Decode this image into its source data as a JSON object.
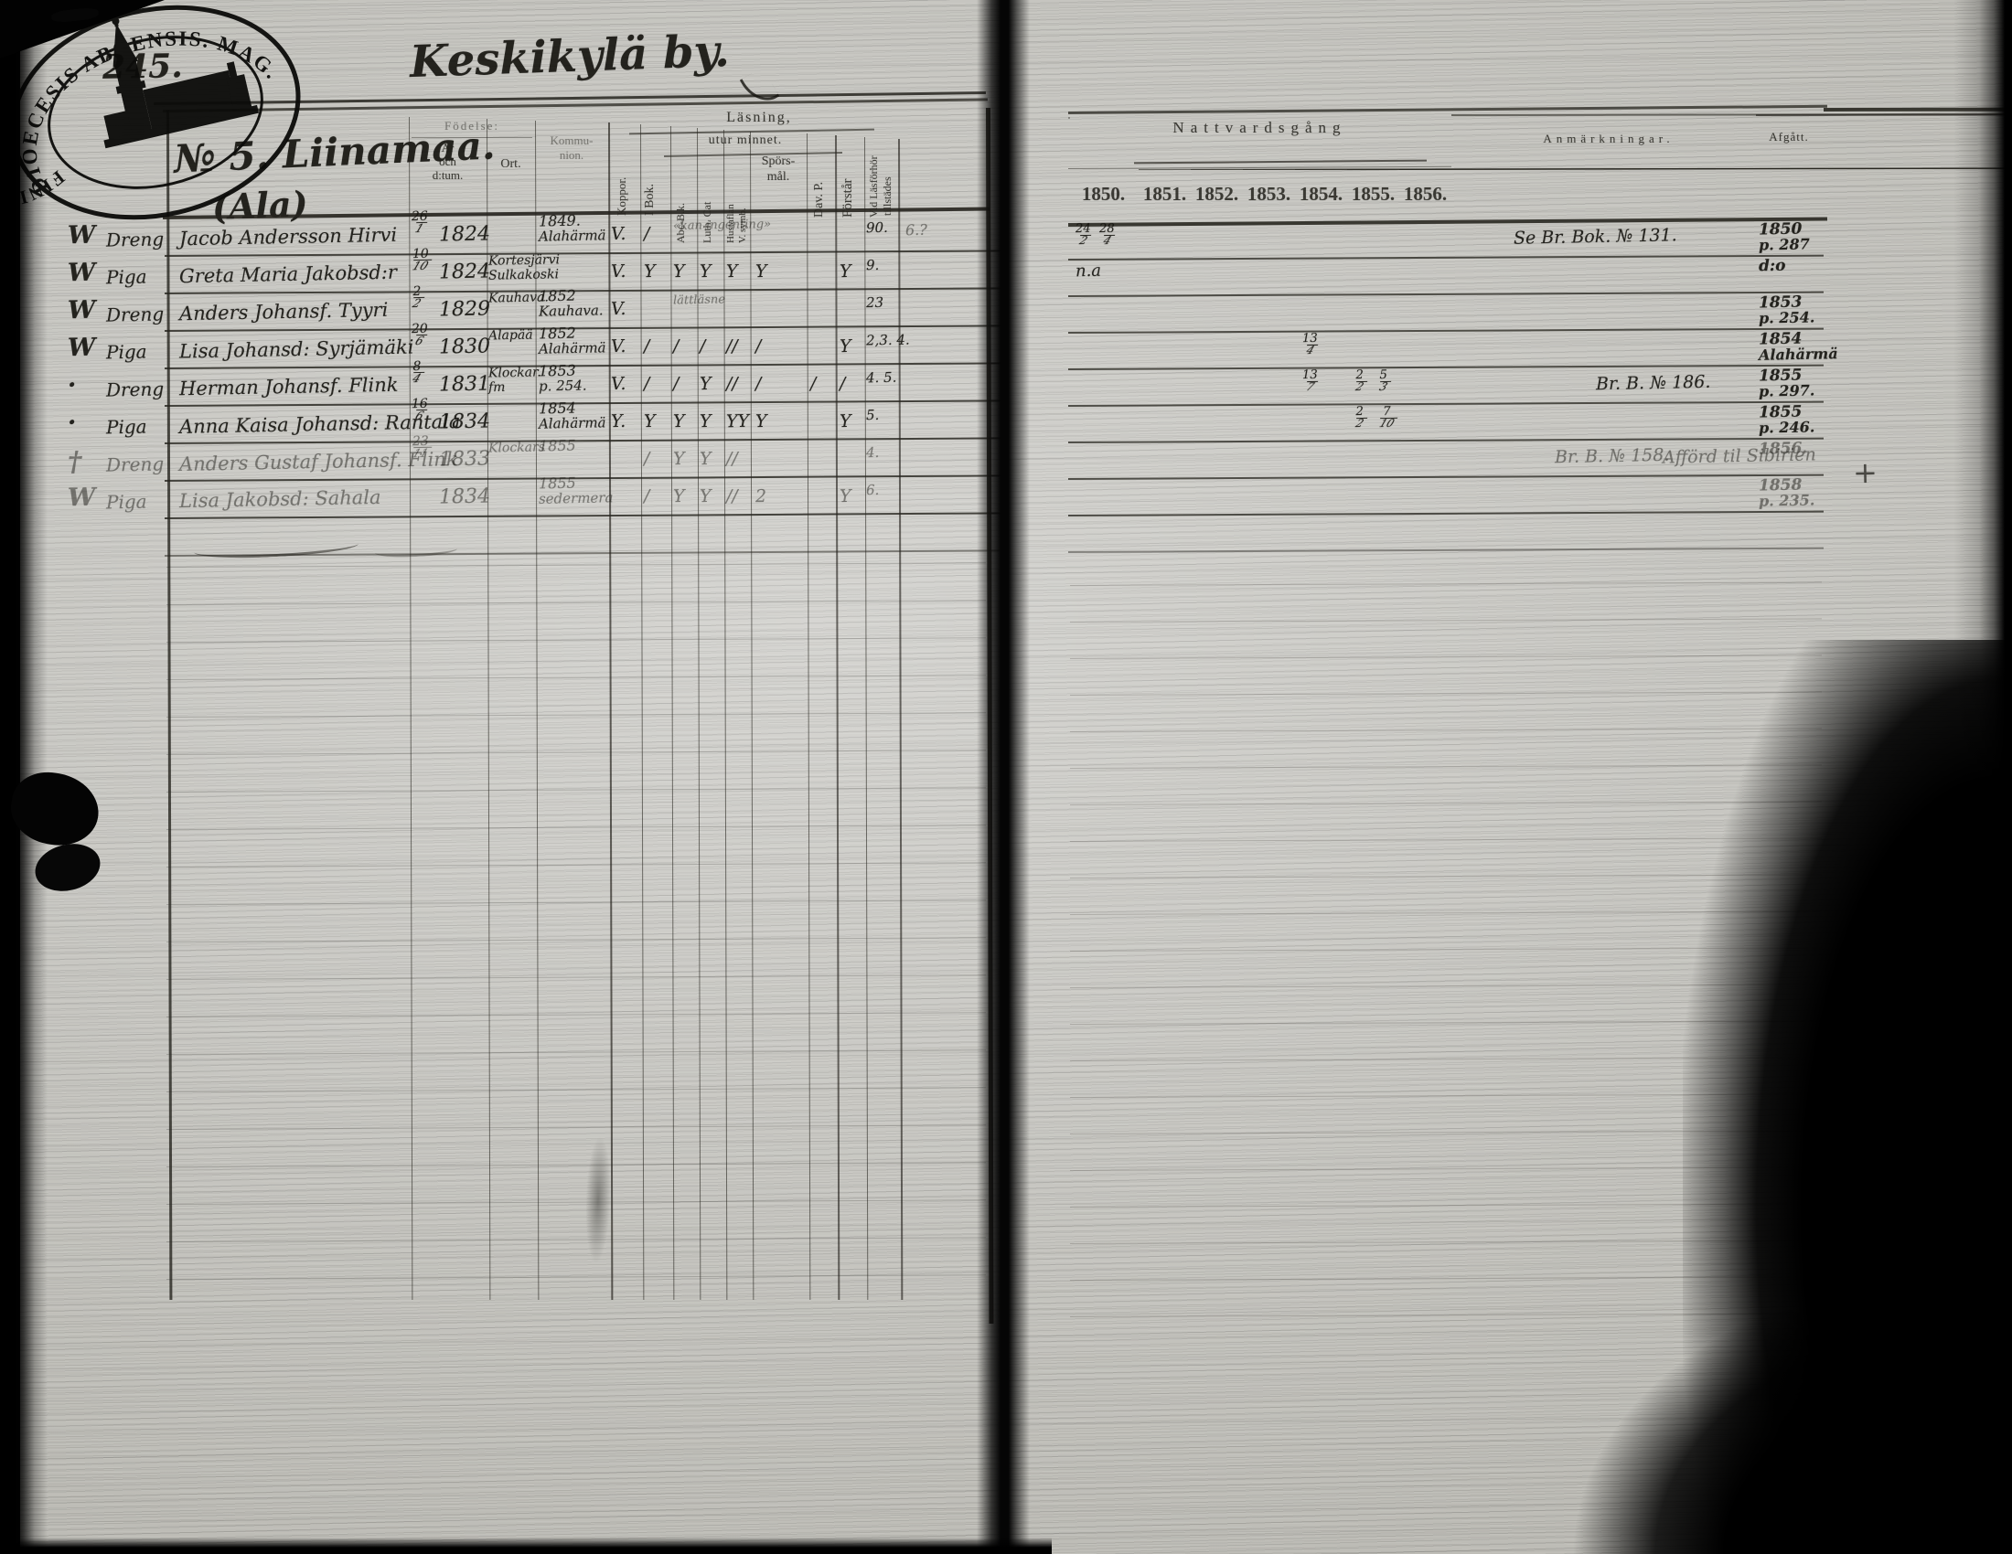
{
  "page": {
    "page_number": "245.",
    "village_title": "Keskikylä by.",
    "household_no": "№ 5. Liinamaa.",
    "household_sub": "(Ala)"
  },
  "headers_left": {
    "fodelse": "Födelse:",
    "ar1": "År",
    "ar2": "och",
    "ar3": "d:tum.",
    "ort": "Ort.",
    "komm1": "Kommu-",
    "komm2": "nion.",
    "koppor": "Koppor.",
    "ibok": "I Bok.",
    "lasning1": "Läsning,",
    "lasning2": "utur minnet.",
    "abc": "Abc-B.k.",
    "luth": "Luth. Cat",
    "hust1": "Hustaflan",
    "hust2": "V. symb.",
    "spors1": "Spörs-",
    "spors2": "mål.",
    "dav": "Dav. P.",
    "forstar": "Förstår",
    "tillst1": "Vid Läsförhör",
    "tillst2": "tillstädes"
  },
  "right": {
    "nattvard_header": "Nattvardsgång",
    "years": [
      "1850.",
      "1851.",
      "1852.",
      "1853.",
      "1854.",
      "1855.",
      "1856."
    ],
    "anmarkningar_header": "Anmärkningar.",
    "afgatt_header": "Afgått."
  },
  "rows": [
    {
      "mark": "W",
      "title": "Dreng",
      "name": "Jacob Andersson Hirvi",
      "bdate": "26/1",
      "byear": "1824",
      "ort": "",
      "komm": "1849. Alahärmä",
      "marks": [
        "V.",
        "/",
        "",
        "",
        "",
        "",
        "",
        ""
      ],
      "note": "«kan ingenting»",
      "till": "90.",
      "extra": "6.?",
      "natt": {
        "1850": "24/2 28/4"
      },
      "anm": "Se Br. Bok. № 131.",
      "anm2": "",
      "afgatt": [
        "1850",
        "p. 287"
      ],
      "faint": false
    },
    {
      "mark": "W",
      "title": "Piga",
      "name": "Greta Maria Jakobsd:r",
      "bdate": "10/10",
      "byear": "1824",
      "ort": "Kortesjärvi Sulkakoski",
      "komm": "",
      "marks": [
        "V.",
        "Y",
        "Y",
        "Y",
        "Y",
        "Y",
        "",
        "Y"
      ],
      "note": "",
      "till": "9.",
      "extra": "",
      "natt": {
        "1850": "n.a"
      },
      "anm": "",
      "anm2": "",
      "afgatt": [
        "d:o",
        ""
      ],
      "faint": false
    },
    {
      "mark": "W",
      "title": "Dreng",
      "name": "Anders Johansf. Tyyri",
      "bdate": "2/2",
      "byear": "1829",
      "ort": "Kauhava.",
      "komm": "1852 Kauhava.",
      "marks": [
        "V.",
        "",
        "",
        "",
        "",
        "",
        "",
        ""
      ],
      "note": "lättläsne",
      "till": "23",
      "extra": "",
      "natt": {},
      "anm": "",
      "anm2": "",
      "afgatt": [
        "1853",
        "p. 254."
      ],
      "faint": false
    },
    {
      "mark": "W",
      "title": "Piga",
      "name": "Lisa Johansd: Syrjämäki",
      "bdate": "20/6",
      "byear": "1830",
      "ort": "Alapää",
      "komm": "1852 Alahärmä",
      "marks": [
        "V.",
        "/",
        "/",
        "/",
        "//",
        "/",
        "",
        "Y"
      ],
      "note": "",
      "till": "2,3. 4.",
      "extra": "",
      "natt": {
        "1854": "13/4"
      },
      "anm": "",
      "anm2": "",
      "afgatt": [
        "1854",
        "Alahärmä"
      ],
      "faint": false
    },
    {
      "mark": "·",
      "title": "Dreng",
      "name": "Herman Johansf. Flink",
      "bdate": "8/4",
      "byear": "1831",
      "ort": "Klockar. fm",
      "komm": "1853 p. 254.",
      "marks": [
        "V.",
        "/",
        "/",
        "Y",
        "//",
        "/",
        "/",
        "/"
      ],
      "note": "",
      "till": "4. 5.",
      "extra": "",
      "natt": {
        "1854": "13/7",
        "1855": "2/2 5/3"
      },
      "anm": "Br. B. № 186.",
      "anm2": "",
      "afgatt": [
        "1855",
        "p. 297."
      ],
      "faint": false
    },
    {
      "mark": "·",
      "title": "Piga",
      "name": "Anna Kaisa Johansd: Rantala",
      "bdate": "16/6",
      "byear": "1834",
      "ort": "",
      "komm": "1854 Alahärmä",
      "marks": [
        "Y.",
        "Y",
        "Y",
        "Y",
        "YY",
        "Y",
        "",
        "Y"
      ],
      "note": "",
      "till": "5.",
      "extra": "",
      "natt": {
        "1855": "2/2 7/10"
      },
      "anm": "",
      "anm2": "",
      "afgatt": [
        "1855",
        "p. 246."
      ],
      "faint": false
    },
    {
      "mark": "†",
      "title": "Dreng",
      "name": "Anders Gustaf Johansf. Flink",
      "bdate": "23/11",
      "byear": "1833",
      "ort": "Klockars",
      "komm": "1855",
      "marks": [
        "",
        "/",
        "Y",
        "Y",
        "//",
        "",
        "",
        ""
      ],
      "note": "",
      "till": "4.",
      "extra": "",
      "natt": {},
      "anm": "Br. B. № 158.",
      "anm2": "Afförd til Sibirien",
      "afgatt": [
        "1856.",
        ""
      ],
      "faint": true
    },
    {
      "mark": "W",
      "title": "Piga",
      "name": "Lisa Jakobsd: Sahala",
      "bdate": "",
      "byear": "1834",
      "ort": "",
      "komm": "1855 sedermera",
      "marks": [
        "",
        "/",
        "Y",
        "Y",
        "//",
        "2",
        "",
        "Y"
      ],
      "note": "",
      "till": "6.",
      "extra": "",
      "natt": {},
      "anm": "",
      "anm2": "",
      "afgatt": [
        "1858",
        "p. 235."
      ],
      "faint": true
    }
  ],
  "stray_marks": {
    "plus_right_upper": "+",
    "plus_right_lower": "+"
  },
  "stamp": {
    "inscription_main": "DIOECESIS ABOENSIS. MAG.",
    "inscription_secondary": "FINL.",
    "icon": "cathedral-icon"
  },
  "ink_colors": {
    "ink": "#171611",
    "paper": "#bdbcb6"
  }
}
